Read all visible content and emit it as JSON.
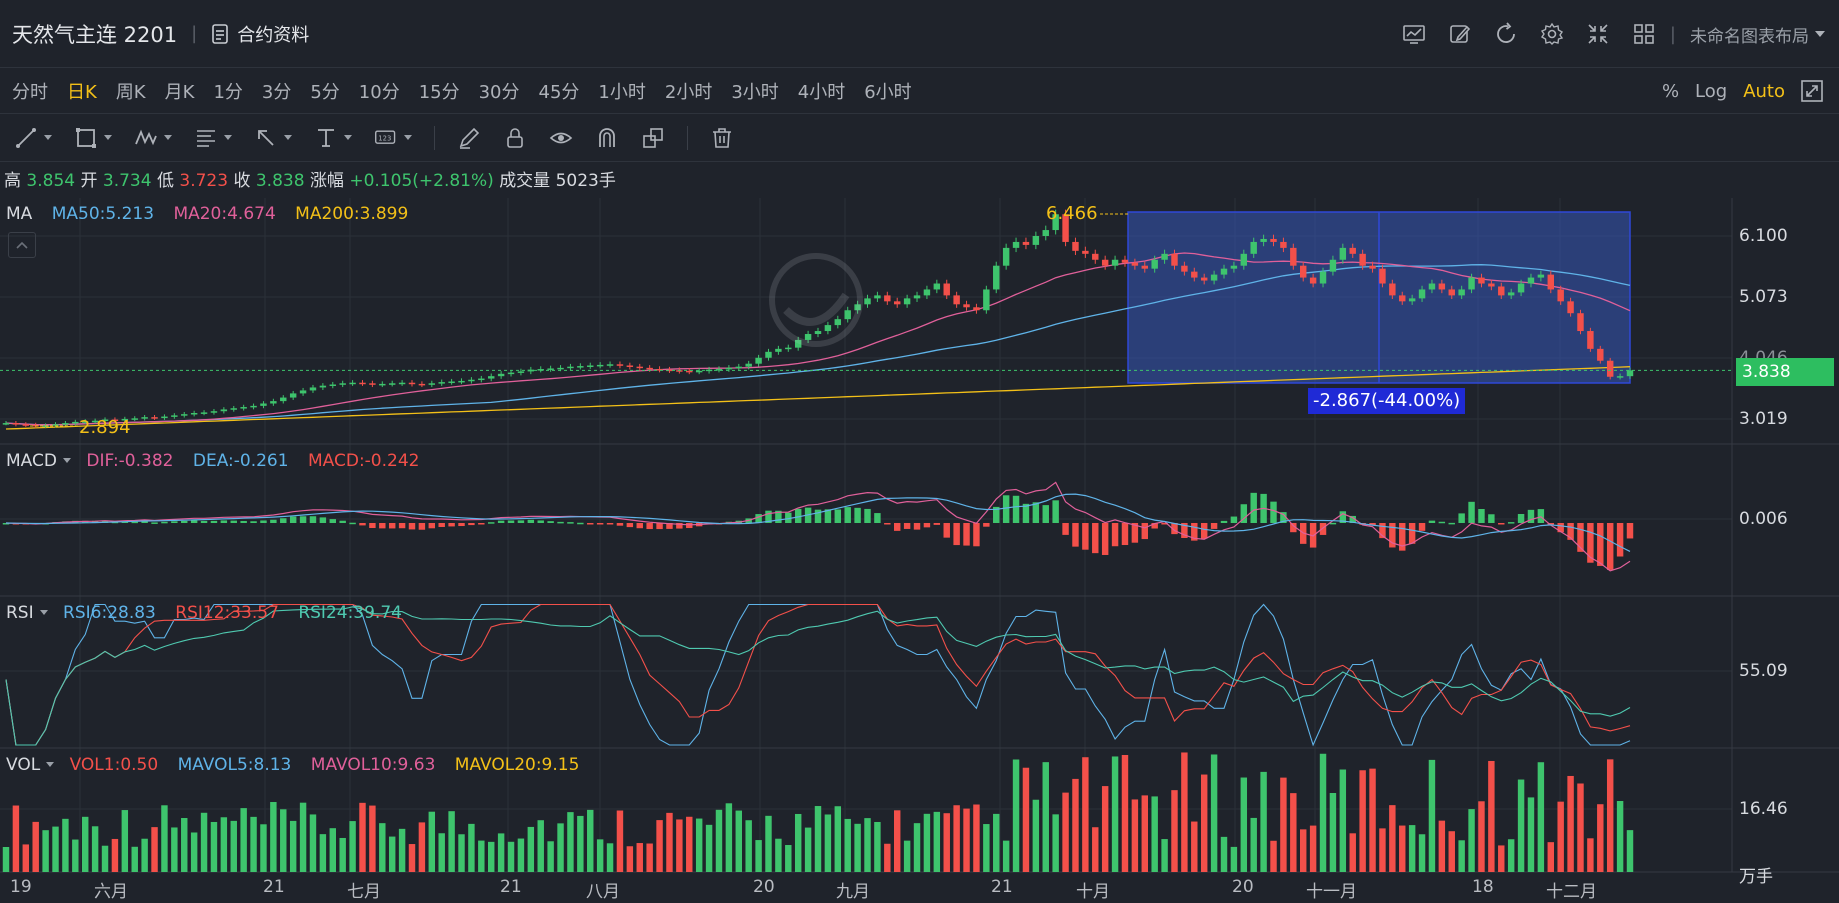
{
  "header": {
    "symbol": "天然气主连 2201",
    "contract_info": "合约资料",
    "layout_name": "未命名图表布局",
    "icons": [
      "chart-style-icon",
      "draw-icon",
      "refresh-icon",
      "settings-icon",
      "fullscreen-compress-icon",
      "grid-layout-icon"
    ]
  },
  "periods": {
    "items": [
      "分时",
      "日K",
      "周K",
      "月K",
      "1分",
      "3分",
      "5分",
      "10分",
      "15分",
      "30分",
      "45分",
      "1小时",
      "2小时",
      "3小时",
      "4小时",
      "6小时"
    ],
    "active": "日K",
    "right": {
      "percent": "%",
      "log": "Log",
      "auto": "Auto"
    }
  },
  "tools": [
    "line-tool-icon",
    "rectangle-tool-icon",
    "pattern-tool-icon",
    "fibonacci-tool-icon",
    "arrow-tool-icon",
    "text-tool-icon",
    "measure-tool-icon",
    "pencil-icon",
    "lock-icon",
    "eye-icon",
    "magnet-icon",
    "clone-icon",
    "trash-icon"
  ],
  "ohlc": {
    "high_label": "高",
    "high": "3.854",
    "open_label": "开",
    "open": "3.734",
    "low_label": "低",
    "low": "3.723",
    "close_label": "收",
    "close": "3.838",
    "change_label": "涨幅",
    "change": "+0.105(+2.81%)",
    "volume_label": "成交量",
    "volume": "5023手"
  },
  "panels": {
    "ma": {
      "name": "MA",
      "ma50": "MA50:5.213",
      "ma20": "MA20:4.674",
      "ma200": "MA200:3.899",
      "axis": [
        "6.100",
        "5.073",
        "4.046",
        "3.019"
      ],
      "last_price": "3.838",
      "high_marker": "6.466",
      "low_marker": "2.894",
      "measure": "-2.867(-44.00%)"
    },
    "macd": {
      "name": "MACD",
      "dif": "DIF:-0.382",
      "dea": "DEA:-0.261",
      "macd": "MACD:-0.242",
      "axis": [
        "0.006"
      ]
    },
    "rsi": {
      "name": "RSI",
      "rsi6": "RSI6:28.83",
      "rsi12": "RSI12:33.57",
      "rsi24": "RSI24:39.74",
      "axis": [
        "55.09"
      ]
    },
    "vol": {
      "name": "VOL",
      "vol1": "VOL1:0.50",
      "mavol5": "MAVOL5:8.13",
      "mavol10": "MAVOL10:9.63",
      "mavol20": "MAVOL20:9.15",
      "axis": [
        "16.46"
      ],
      "unit": "万手"
    }
  },
  "x_axis": [
    "19",
    "六月",
    "21",
    "七月",
    "21",
    "八月",
    "20",
    "九月",
    "21",
    "十月",
    "20",
    "十一月",
    "18",
    "十二月"
  ],
  "colors": {
    "up": "#3ec46d",
    "down": "#f3504a",
    "ma50": "#5fb3e8",
    "ma20": "#e0609a",
    "ma200": "#f3c018",
    "accent": "#f3c018",
    "measure_box": "#3458b8"
  },
  "chart_data": {
    "type": "candlestick",
    "note_series": "daily closes, Jun - Dec",
    "closes": [
      2.95,
      2.93,
      2.92,
      2.9,
      2.91,
      2.93,
      2.95,
      2.97,
      2.98,
      2.99,
      3.01,
      3.0,
      3.02,
      3.03,
      3.05,
      3.04,
      3.06,
      3.08,
      3.1,
      3.12,
      3.13,
      3.15,
      3.18,
      3.2,
      3.22,
      3.24,
      3.28,
      3.32,
      3.38,
      3.45,
      3.5,
      3.55,
      3.58,
      3.6,
      3.62,
      3.63,
      3.62,
      3.6,
      3.61,
      3.62,
      3.63,
      3.61,
      3.6,
      3.62,
      3.64,
      3.65,
      3.66,
      3.68,
      3.7,
      3.74,
      3.78,
      3.8,
      3.82,
      3.85,
      3.86,
      3.87,
      3.88,
      3.9,
      3.91,
      3.92,
      3.93,
      3.94,
      3.92,
      3.9,
      3.88,
      3.86,
      3.85,
      3.84,
      3.83,
      3.82,
      3.83,
      3.85,
      3.86,
      3.88,
      3.9,
      3.95,
      4.05,
      4.15,
      4.2,
      4.22,
      4.35,
      4.45,
      4.5,
      4.6,
      4.7,
      4.85,
      4.95,
      5.05,
      5.1,
      5.0,
      4.95,
      5.05,
      5.1,
      5.2,
      5.3,
      5.1,
      4.95,
      4.9,
      4.85,
      5.2,
      5.6,
      5.9,
      6.0,
      5.95,
      6.1,
      6.2,
      6.466,
      6.0,
      5.85,
      5.8,
      5.7,
      5.6,
      5.7,
      5.65,
      5.6,
      5.55,
      5.7,
      5.8,
      5.6,
      5.5,
      5.4,
      5.35,
      5.45,
      5.55,
      5.6,
      5.8,
      6.0,
      6.05,
      6.0,
      5.9,
      5.6,
      5.4,
      5.3,
      5.5,
      5.7,
      5.9,
      5.8,
      5.6,
      5.55,
      5.3,
      5.1,
      5.0,
      5.05,
      5.2,
      5.3,
      5.2,
      5.1,
      5.2,
      5.4,
      5.3,
      5.25,
      5.1,
      5.15,
      5.3,
      5.4,
      5.45,
      5.2,
      5.0,
      4.8,
      4.5,
      4.2,
      4.0,
      3.73,
      3.74,
      3.838
    ],
    "ma_axis": [
      3.019,
      4.046,
      5.073,
      6.1
    ],
    "x_labels": [
      "19",
      "六月",
      "21",
      "七月",
      "21",
      "八月",
      "20",
      "九月",
      "21",
      "十月",
      "20",
      "十一月",
      "18",
      "十二月"
    ]
  }
}
